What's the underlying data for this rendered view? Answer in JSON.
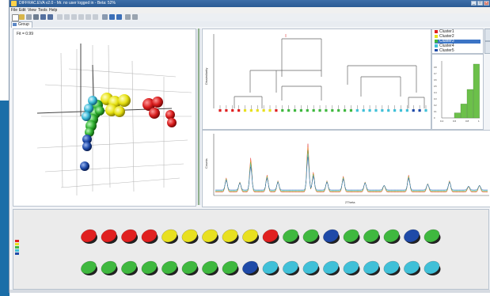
{
  "window": {
    "title": "DIFFRAC.EVA v2.0 - Mr. no user logged in - Beta: 52%"
  },
  "menu": [
    "File",
    "Edit",
    "View",
    "Tools",
    "Help"
  ],
  "tabs": {
    "group_label": "Group"
  },
  "panel3d": {
    "fit_label": "Fit = 0.99"
  },
  "clusters": {
    "legend": [
      {
        "label": "Cluster1",
        "color": "#e02020"
      },
      {
        "label": "Cluster2",
        "color": "#e8e020"
      },
      {
        "label": "Cluster3",
        "color": "#3fb83f"
      },
      {
        "label": "Cluster4",
        "color": "#40c0d8"
      },
      {
        "label": "Cluster5",
        "color": "#1f4aa8"
      }
    ],
    "selected_index": 2
  },
  "dendrogram": {
    "y_label": "Dissimilarity",
    "leaves": [
      "#e02020",
      "#e02020",
      "#e02020",
      "#e02020",
      "#e8e020",
      "#e8e020",
      "#e8e020",
      "#e8e020",
      "#e8e020",
      "#e02020",
      "#3fb83f",
      "#3fb83f",
      "#3fb83f",
      "#3fb83f",
      "#3fb83f",
      "#3fb83f",
      "#3fb83f",
      "#3fb83f",
      "#3fb83f",
      "#3fb83f",
      "#3fb83f",
      "#3fb83f",
      "#40c0d8",
      "#40c0d8",
      "#40c0d8",
      "#40c0d8",
      "#40c0d8",
      "#40c0d8",
      "#40c0d8",
      "#40c0d8",
      "#40c0d8",
      "#1f4aa8",
      "#1f4aa8",
      "#40c0d8"
    ]
  },
  "pattern": {
    "x_label": "2Theta",
    "y_label": "Counts"
  },
  "disks": {
    "row1": [
      "#e02020",
      "#e02020",
      "#e02020",
      "#e02020",
      "#e8e020",
      "#e8e020",
      "#e8e020",
      "#e8e020",
      "#e8e020",
      "#e02020",
      "#3fb83f",
      "#3fb83f",
      "#1f4aa8",
      "#3fb83f",
      "#3fb83f",
      "#3fb83f",
      "#1f4aa8",
      "#3fb83f"
    ],
    "row2": [
      "#3fb83f",
      "#3fb83f",
      "#3fb83f",
      "#3fb83f",
      "#3fb83f",
      "#3fb83f",
      "#3fb83f",
      "#3fb83f",
      "#1f4aa8",
      "#40c0d8",
      "#40c0d8",
      "#40c0d8",
      "#40c0d8",
      "#40c0d8",
      "#40c0d8",
      "#40c0d8",
      "#40c0d8",
      "#40c0d8"
    ]
  },
  "histogram": {
    "chart_data": {
      "type": "bar",
      "categories": [
        "0.4",
        "0.5",
        "0.6",
        "0.7",
        "0.8",
        "0.9"
      ],
      "values": [
        0,
        0,
        0.08,
        0.22,
        0.45,
        0.85
      ],
      "x_ticks": [
        "0.4",
        "0.6",
        "0.8",
        "1"
      ],
      "y_ticks": [
        "0",
        "0.1",
        "0.2",
        "0.3",
        "0.4",
        "0.5",
        "0.6",
        "0.7",
        "0.8"
      ],
      "ylim": [
        0,
        0.9
      ],
      "color": "#6cc04a"
    }
  },
  "icons": [
    "app-icon",
    "new-icon",
    "open-icon",
    "save-icon",
    "print-icon",
    "undo-icon",
    "redo-icon",
    "cut-icon",
    "copy-icon",
    "paste-icon",
    "delete-icon",
    "chart-icon",
    "export-icon",
    "grid-icon",
    "settings-icon"
  ]
}
